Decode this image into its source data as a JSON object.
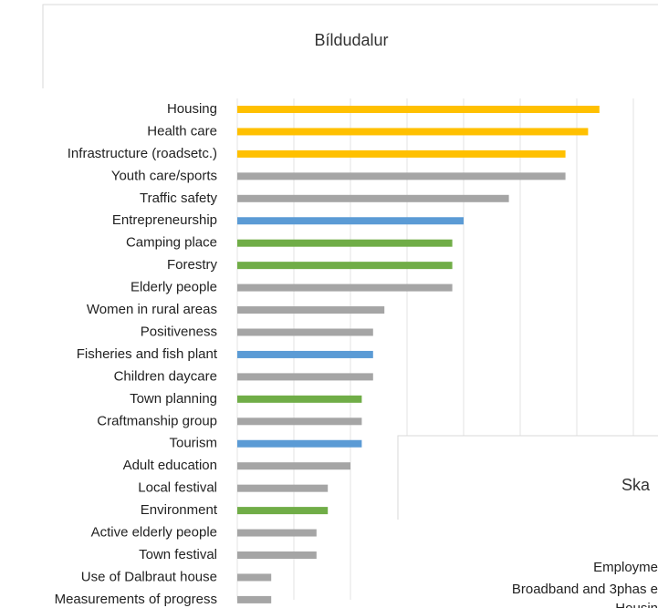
{
  "chart_data": [
    {
      "type": "barh",
      "title": "Bíldudalur",
      "categories": [
        "Housing",
        "Health care",
        "Infrastructure (roadsetc.)",
        "Youth care/sports",
        "Traffic safety",
        "Entrepreneurship",
        "Camping place",
        "Forestry",
        "Elderly people",
        "Women in rural areas",
        "Positiveness",
        "Fisheries and fish plant",
        "Children daycare",
        "Town planning",
        "Craftmanship group",
        "Tourism",
        "Adult education",
        "Local festival",
        "Environment",
        "Active elderly people",
        "Town festival",
        "Use of Dalbraut house",
        "Measurements of progress"
      ],
      "values": [
        32,
        31,
        29,
        29,
        24,
        20,
        19,
        19,
        19,
        13,
        12,
        12,
        12,
        11,
        11,
        11,
        10,
        8,
        8,
        7,
        7,
        3,
        3
      ],
      "colors": [
        "#ffc000",
        "#ffc000",
        "#ffc000",
        "#a5a5a5",
        "#a5a5a5",
        "#5b9bd5",
        "#70ad47",
        "#70ad47",
        "#a5a5a5",
        "#a5a5a5",
        "#a5a5a5",
        "#5b9bd5",
        "#a5a5a5",
        "#70ad47",
        "#a5a5a5",
        "#5b9bd5",
        "#a5a5a5",
        "#a5a5a5",
        "#70ad47",
        "#a5a5a5",
        "#a5a5a5",
        "#a5a5a5",
        "#a5a5a5"
      ],
      "xlim": [
        0,
        40
      ],
      "xticks": [
        0,
        5,
        10,
        15,
        20,
        25,
        30,
        35
      ],
      "grid": true
    },
    {
      "type": "barh",
      "title": "Ska",
      "categories": [
        "Employme",
        "Broadband and 3phas e",
        "Housin"
      ]
    }
  ]
}
